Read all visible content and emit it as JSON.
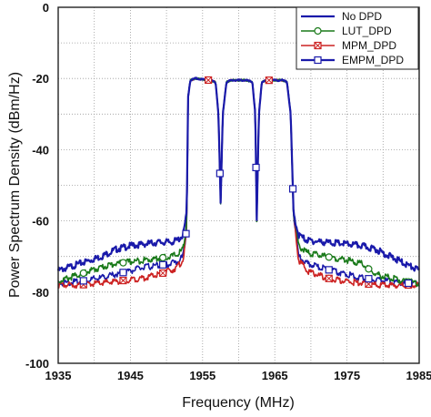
{
  "chart_data": {
    "type": "line",
    "xlabel": "Frequency (MHz)",
    "ylabel": "Power Spectrum Density (dBm/Hz)",
    "xlim": [
      1935,
      1985
    ],
    "ylim": [
      -100,
      0
    ],
    "x_ticks": [
      "1935",
      "1945",
      "1955",
      "1965",
      "1975",
      "1985"
    ],
    "y_ticks": [
      "0",
      "-20",
      "-40",
      "-60",
      "-80",
      "-100"
    ],
    "grid": true,
    "grid_style": "dotted",
    "legend_position": "top-right",
    "series": [
      {
        "name": "No DPD",
        "color": "#1a1aaa",
        "marker": "none",
        "x": [
          1935,
          1938,
          1941,
          1943,
          1945,
          1947,
          1949,
          1950.5,
          1951.5,
          1952.3,
          1952.8,
          1953,
          1953.3,
          1954,
          1956,
          1956.8,
          1957.2,
          1957.5,
          1957.8,
          1958.3,
          1959,
          1961,
          1961.9,
          1962.3,
          1962.5,
          1962.8,
          1963.2,
          1964,
          1966,
          1966.7,
          1967.2,
          1967.6,
          1968.3,
          1969.5,
          1972,
          1975,
          1977,
          1979,
          1981,
          1983,
          1985
        ],
        "y": [
          -74,
          -72,
          -70,
          -68,
          -67,
          -66.5,
          -66,
          -66,
          -65.5,
          -64,
          -58,
          -25,
          -20.5,
          -20,
          -20.5,
          -21,
          -30,
          -55,
          -30,
          -21,
          -20.5,
          -20.5,
          -21,
          -30,
          -60,
          -30,
          -21,
          -20.5,
          -20.5,
          -21,
          -30,
          -58,
          -64,
          -65.5,
          -66,
          -66.5,
          -67,
          -68,
          -70,
          -72,
          -74
        ]
      },
      {
        "name": "LUT_DPD",
        "color": "#1a7a1a",
        "marker": "circle",
        "x": [
          1935,
          1938,
          1941,
          1943,
          1945,
          1947,
          1949,
          1950.5,
          1951.5,
          1952.3,
          1952.8,
          1953,
          1953.3,
          1954,
          1956,
          1956.8,
          1957.2,
          1957.5,
          1957.8,
          1958.3,
          1959,
          1961,
          1961.9,
          1962.3,
          1962.5,
          1962.8,
          1963.2,
          1964,
          1966,
          1966.7,
          1967.2,
          1967.6,
          1968.3,
          1969.5,
          1972,
          1975,
          1977,
          1979,
          1981,
          1983,
          1985
        ],
        "y": [
          -77,
          -75,
          -73,
          -72,
          -71.5,
          -71,
          -70.5,
          -70,
          -69.5,
          -68,
          -60,
          -25,
          -20.5,
          -20,
          -20.5,
          -21,
          -30,
          -55,
          -30,
          -21,
          -20.5,
          -20.5,
          -21,
          -30,
          -60,
          -30,
          -21,
          -20.5,
          -20.5,
          -21,
          -30,
          -58,
          -67,
          -69,
          -70,
          -71,
          -72,
          -75,
          -76,
          -77,
          -77.5
        ]
      },
      {
        "name": "MPM_DPD",
        "color": "#cc2222",
        "marker": "x-square",
        "x": [
          1935,
          1938,
          1941,
          1943,
          1945,
          1947,
          1949,
          1950.5,
          1951.5,
          1952.3,
          1952.8,
          1953,
          1953.3,
          1954,
          1956,
          1956.8,
          1957.2,
          1957.5,
          1957.8,
          1958.3,
          1959,
          1961,
          1961.9,
          1962.3,
          1962.5,
          1962.8,
          1963.2,
          1964,
          1966,
          1966.7,
          1967.2,
          1967.6,
          1968.3,
          1969.5,
          1972,
          1975,
          1977,
          1979,
          1981,
          1983,
          1985
        ],
        "y": [
          -78,
          -78,
          -77.5,
          -77,
          -76.5,
          -76,
          -75,
          -74,
          -73,
          -71,
          -62,
          -25,
          -20.5,
          -20,
          -20.5,
          -21,
          -30,
          -55,
          -30,
          -21,
          -20.5,
          -20.5,
          -21,
          -30,
          -60,
          -30,
          -21,
          -20.5,
          -20.5,
          -21,
          -30,
          -58,
          -71,
          -74,
          -76,
          -77,
          -77.5,
          -78,
          -78,
          -78,
          -78
        ]
      },
      {
        "name": "EMPM_DPD",
        "color": "#1a1aaa",
        "marker": "square",
        "x": [
          1935,
          1938,
          1941,
          1943,
          1945,
          1947,
          1949,
          1950.5,
          1951.5,
          1952.3,
          1952.8,
          1953,
          1953.3,
          1954,
          1956,
          1956.8,
          1957.2,
          1957.5,
          1957.8,
          1958.3,
          1959,
          1961,
          1961.9,
          1962.3,
          1962.5,
          1962.8,
          1963.2,
          1964,
          1966,
          1966.7,
          1967.2,
          1967.6,
          1968.3,
          1969.5,
          1972,
          1975,
          1977,
          1979,
          1981,
          1983,
          1985
        ],
        "y": [
          -77.5,
          -77,
          -76,
          -75,
          -74,
          -73,
          -72.5,
          -72,
          -71.5,
          -70,
          -62,
          -25,
          -20.5,
          -20,
          -20.5,
          -21,
          -30,
          -55,
          -30,
          -21,
          -20.5,
          -20.5,
          -21,
          -30,
          -60,
          -30,
          -21,
          -20.5,
          -20.5,
          -21,
          -30,
          -58,
          -70,
          -72,
          -73.5,
          -75,
          -76,
          -76.5,
          -77,
          -77.5,
          -77.5
        ]
      }
    ],
    "markers": [
      {
        "series": 1,
        "x": [
          1938.5,
          1944,
          1949.5,
          1972.5,
          1978,
          1983.5
        ]
      },
      {
        "series": 2,
        "x": [
          1938.5,
          1944,
          1949.5,
          1955.8,
          1964.2,
          1972.5,
          1978,
          1983.5
        ]
      },
      {
        "series": 3,
        "x": [
          1938.5,
          1944,
          1949.5,
          1952.7,
          1957.4,
          1962.4,
          1967.5,
          1972.5,
          1978,
          1983.5
        ]
      }
    ]
  }
}
